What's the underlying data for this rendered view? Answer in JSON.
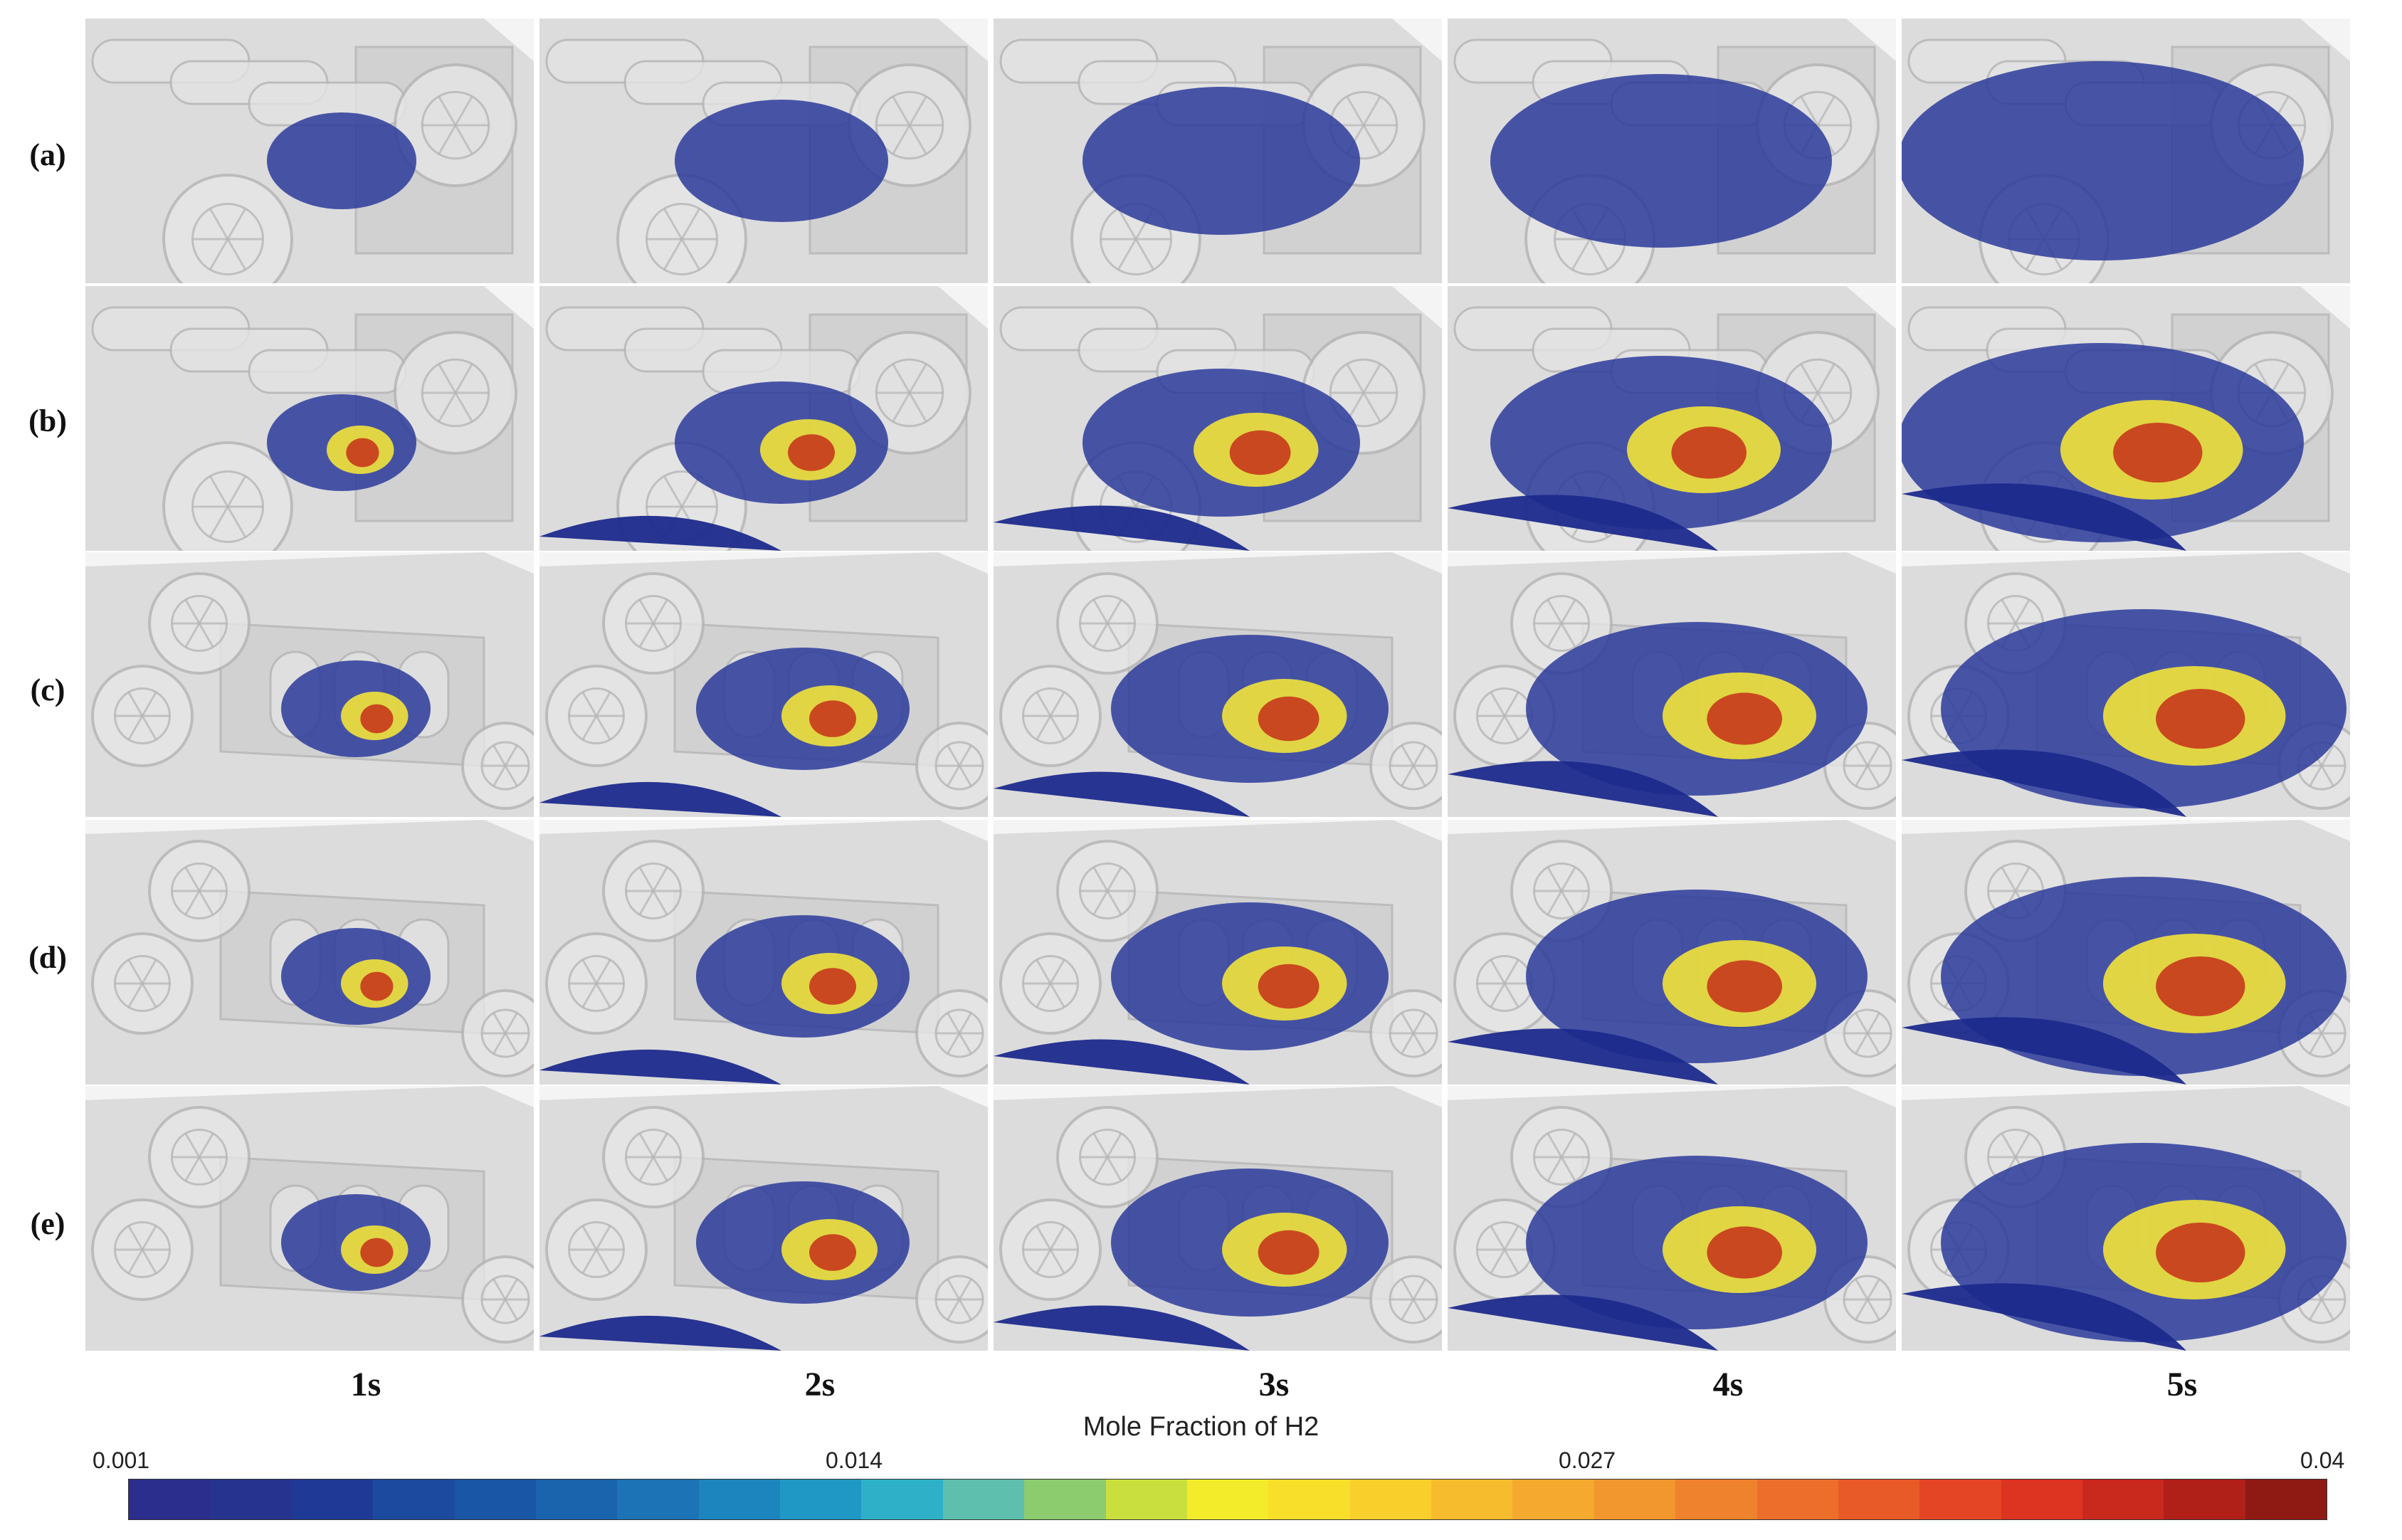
{
  "rows": [
    "(a)",
    "(b)",
    "(c)",
    "(d)",
    "(e)"
  ],
  "times": [
    "1s",
    "2s",
    "3s",
    "4s",
    "5s"
  ],
  "colorbar": {
    "title": "Mole Fraction of H2",
    "ticks": [
      "0.001",
      "0.014",
      "0.027",
      "0.04"
    ],
    "colors": [
      "#2b2e8c",
      "#26338f",
      "#1f3a96",
      "#1b4a9f",
      "#1956a6",
      "#1a63ad",
      "#1c73b5",
      "#1d85be",
      "#1f98c6",
      "#2eb0c9",
      "#5fbfae",
      "#8ccc6e",
      "#c9df3e",
      "#f2ec2b",
      "#f7df2a",
      "#f8cf2b",
      "#f7bc2d",
      "#f5a92e",
      "#f2962e",
      "#ef822c",
      "#ec6e2a",
      "#e85a27",
      "#e44524",
      "#dd3321",
      "#c9291d",
      "#b02019",
      "#8f1a14"
    ]
  },
  "scene_colors": {
    "vehicle": "#d9d9d9",
    "vehicle_edge": "#b5b5b5",
    "plume_low": "#2b3b9b",
    "plume_mid": "#f2e33a",
    "plume_high": "#c8401e"
  }
}
